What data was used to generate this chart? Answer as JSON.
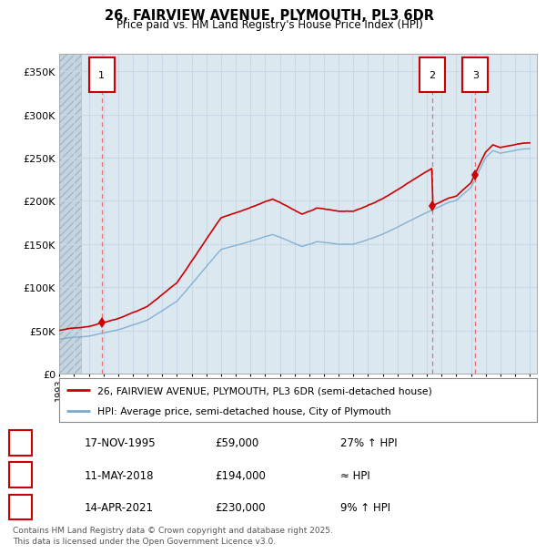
{
  "title": "26, FAIRVIEW AVENUE, PLYMOUTH, PL3 6DR",
  "subtitle": "Price paid vs. HM Land Registry's House Price Index (HPI)",
  "yticks": [
    0,
    50000,
    100000,
    150000,
    200000,
    250000,
    300000,
    350000
  ],
  "ylim": [
    0,
    370000
  ],
  "xlim_start": 1993.0,
  "xlim_end": 2025.5,
  "sale_year_nums": [
    1995.88,
    2018.36,
    2021.29
  ],
  "sale_prices": [
    59000,
    194000,
    230000
  ],
  "sale_labels": [
    "1",
    "2",
    "3"
  ],
  "legend_line1": "26, FAIRVIEW AVENUE, PLYMOUTH, PL3 6DR (semi-detached house)",
  "legend_line2": "HPI: Average price, semi-detached house, City of Plymouth",
  "table_rows": [
    [
      "1",
      "17-NOV-1995",
      "£59,000",
      "27% ↑ HPI"
    ],
    [
      "2",
      "11-MAY-2018",
      "£194,000",
      "≈ HPI"
    ],
    [
      "3",
      "14-APR-2021",
      "£230,000",
      "9% ↑ HPI"
    ]
  ],
  "footer": "Contains HM Land Registry data © Crown copyright and database right 2025.\nThis data is licensed under the Open Government Licence v3.0.",
  "red_color": "#cc0000",
  "blue_color": "#7aabcf",
  "dashed_red": "#e87070",
  "grid_color": "#c8d8e8",
  "plot_bg": "#dce8f0"
}
